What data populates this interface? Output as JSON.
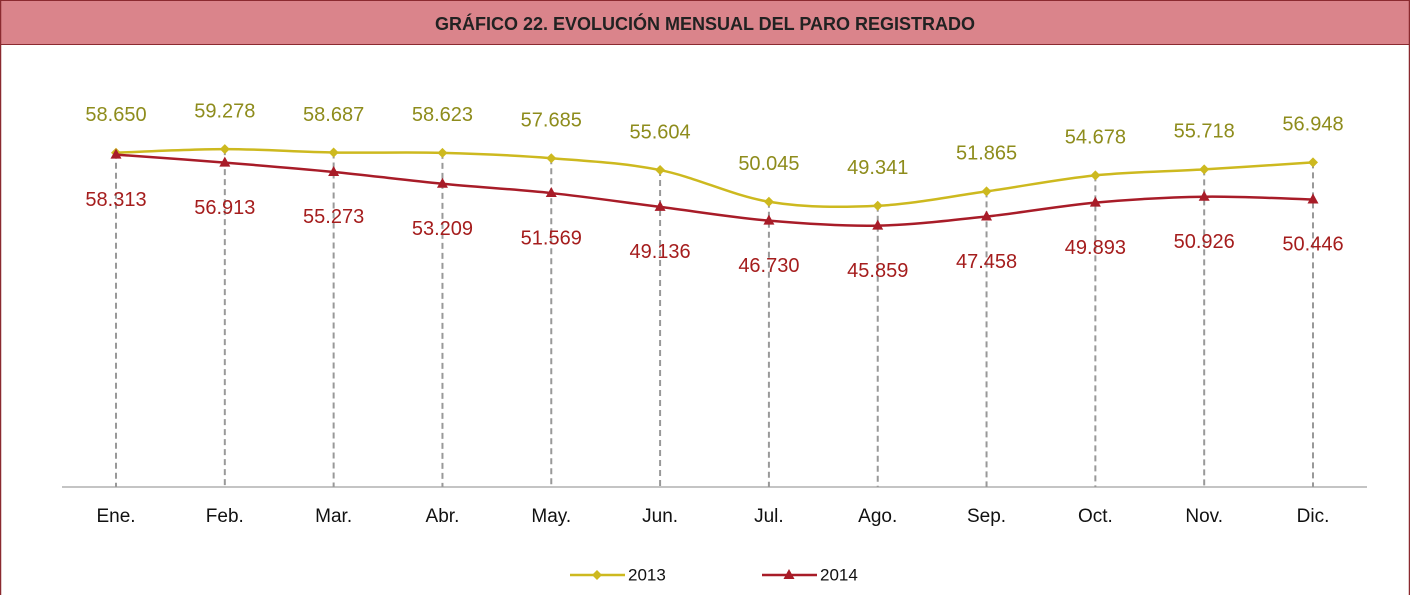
{
  "chart_data": {
    "type": "line",
    "title": "GRÁFICO 22. EVOLUCIÓN MENSUAL DEL PARO REGISTRADO",
    "categories": [
      "Ene.",
      "Feb.",
      "Mar.",
      "Abr.",
      "May.",
      "Jun.",
      "Jul.",
      "Ago.",
      "Sep.",
      "Oct.",
      "Nov.",
      "Dic."
    ],
    "series": [
      {
        "name": "2013",
        "color": "#cdb91f",
        "marker": "diamond",
        "values": [
          58650,
          59278,
          58687,
          58623,
          57685,
          55604,
          50045,
          49341,
          51865,
          54678,
          55718,
          56948
        ],
        "value_labels": [
          "58.650",
          "59.278",
          "58.687",
          "58.623",
          "57.685",
          "55.604",
          "50.045",
          "49.341",
          "51.865",
          "54.678",
          "55.718",
          "56.948"
        ]
      },
      {
        "name": "2014",
        "color": "#a81c28",
        "marker": "triangle",
        "values": [
          58313,
          56913,
          55273,
          53209,
          51569,
          49136,
          46730,
          45859,
          47458,
          49893,
          50926,
          50446
        ],
        "value_labels": [
          "58.313",
          "56.913",
          "55.273",
          "53.209",
          "51.569",
          "49.136",
          "46.730",
          "45.859",
          "47.458",
          "49.893",
          "50.926",
          "50.446"
        ]
      }
    ],
    "ylim": [
      0,
      70000
    ],
    "smooth": true,
    "legend": "bottom"
  }
}
